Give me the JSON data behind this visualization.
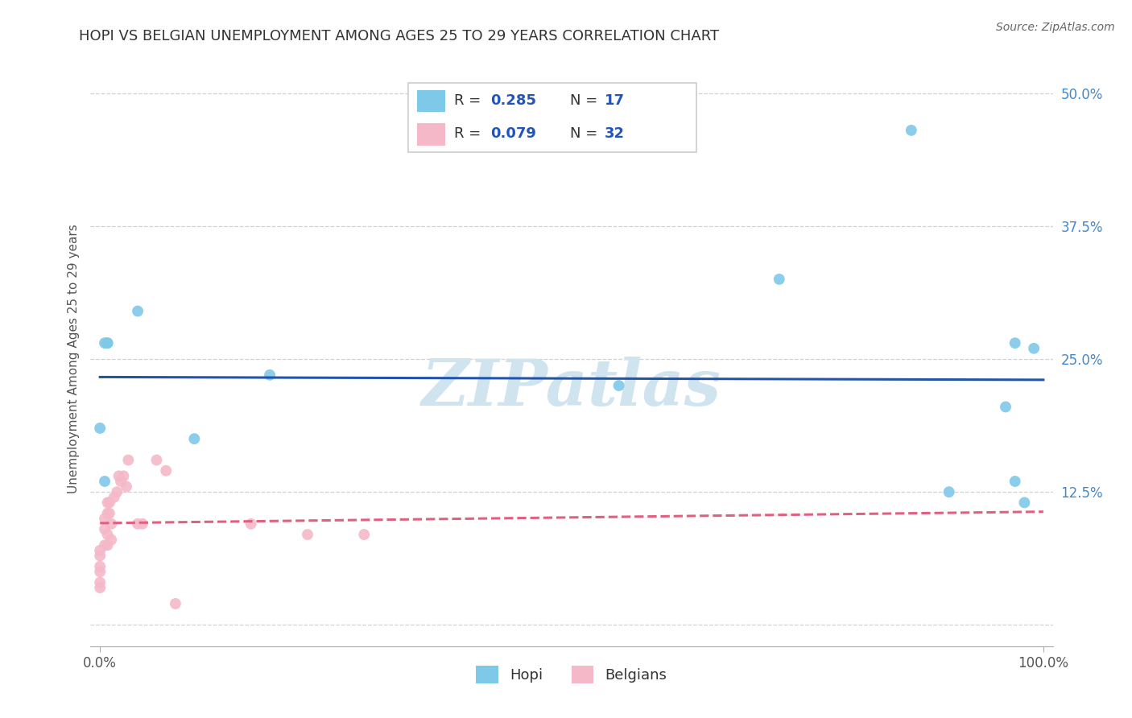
{
  "title": "HOPI VS BELGIAN UNEMPLOYMENT AMONG AGES 25 TO 29 YEARS CORRELATION CHART",
  "source": "Source: ZipAtlas.com",
  "ylabel": "Unemployment Among Ages 25 to 29 years",
  "background_color": "#ffffff",
  "hopi_color": "#7ec8e8",
  "belgian_color": "#f5b8c8",
  "hopi_line_color": "#2255aa",
  "belgian_line_color": "#e06080",
  "hopi_R": "0.285",
  "hopi_N": "17",
  "belgian_R": "0.079",
  "belgian_N": "32",
  "hopi_x": [
    0.0,
    0.005,
    0.005,
    0.008,
    0.008,
    0.04,
    0.1,
    0.18,
    0.55,
    0.72,
    0.86,
    0.9,
    0.96,
    0.97,
    0.97,
    0.98,
    0.99
  ],
  "hopi_y": [
    0.185,
    0.135,
    0.265,
    0.265,
    0.265,
    0.295,
    0.175,
    0.235,
    0.225,
    0.325,
    0.465,
    0.125,
    0.205,
    0.265,
    0.135,
    0.115,
    0.26
  ],
  "belgian_x": [
    0.0,
    0.0,
    0.0,
    0.0,
    0.0,
    0.0,
    0.005,
    0.005,
    0.005,
    0.008,
    0.008,
    0.008,
    0.008,
    0.01,
    0.01,
    0.012,
    0.012,
    0.015,
    0.018,
    0.02,
    0.022,
    0.025,
    0.028,
    0.03,
    0.04,
    0.045,
    0.06,
    0.07,
    0.08,
    0.16,
    0.22,
    0.28
  ],
  "belgian_y": [
    0.07,
    0.065,
    0.055,
    0.05,
    0.04,
    0.035,
    0.1,
    0.09,
    0.075,
    0.115,
    0.105,
    0.085,
    0.075,
    0.115,
    0.105,
    0.095,
    0.08,
    0.12,
    0.125,
    0.14,
    0.135,
    0.14,
    0.13,
    0.155,
    0.095,
    0.095,
    0.155,
    0.145,
    0.02,
    0.095,
    0.085,
    0.085
  ],
  "xlim": [
    -0.01,
    1.01
  ],
  "ylim": [
    -0.02,
    0.52
  ],
  "xtick_positions": [
    0.0,
    1.0
  ],
  "xticklabels": [
    "0.0%",
    "100.0%"
  ],
  "ytick_positions": [
    0.125,
    0.25,
    0.375,
    0.5
  ],
  "yticklabels_right": [
    "12.5%",
    "25.0%",
    "37.5%",
    "50.0%"
  ],
  "grid_yticks": [
    0.0,
    0.125,
    0.25,
    0.375,
    0.5
  ],
  "grid_color": "#cccccc",
  "watermark": "ZIPatlas",
  "watermark_color": "#d0e4f0",
  "title_fontsize": 13,
  "label_fontsize": 11,
  "tick_fontsize": 12,
  "legend_fontsize": 13,
  "marker_size": 100
}
